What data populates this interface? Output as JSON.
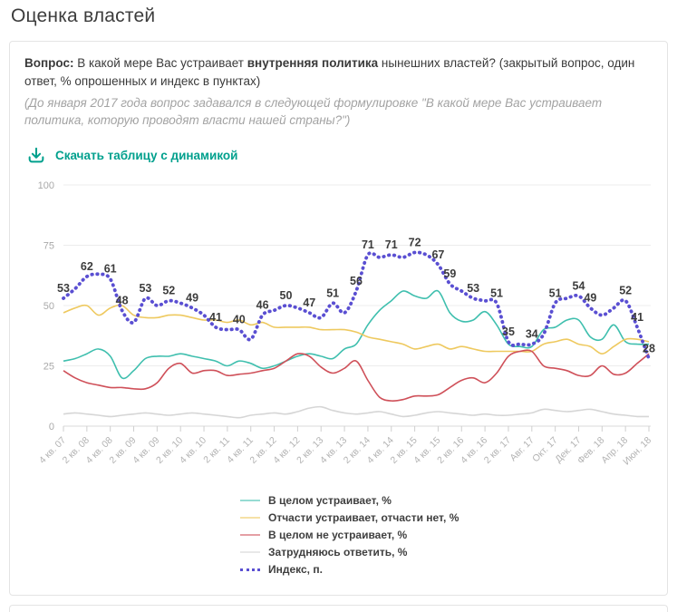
{
  "page_title": "Оценка властей",
  "question": {
    "label_bold": "Вопрос:",
    "part1": " В какой мере Вас устраивает ",
    "part_bold": "внутренняя политика",
    "part2": " нынешних властей? (закрытый вопрос, один ответ, % опрошенных и индекс в пунктах)",
    "note": "(До января 2017 года вопрос задавался в следующей формулировке \"В какой мере Вас устраивает политика, которую проводят власти нашей страны?\")"
  },
  "download": {
    "label": "Скачать таблицу с динамикой",
    "accent_color": "#00a08d"
  },
  "chart_data": {
    "type": "line",
    "ylim": [
      0,
      100
    ],
    "y_ticks": [
      100,
      75,
      50,
      25,
      0
    ],
    "grid_on": true,
    "legend_position": "bottom",
    "n_points": 51,
    "x_tick_labels": [
      "4 кв. 07",
      "2 кв. 08",
      "4 кв. 08",
      "2 кв. 09",
      "4 кв. 09",
      "2 кв. 10",
      "4 кв. 10",
      "2 кв. 11",
      "4 кв. 11",
      "2 кв. 12",
      "4 кв. 12",
      "2 кв. 13",
      "4 кв. 13",
      "2 кв. 14",
      "4 кв. 14",
      "2 кв. 15",
      "4 кв. 15",
      "2 кв. 16",
      "4 кв. 16",
      "2 кв. 17",
      "Авг. 17",
      "Окт. 17",
      "Дек. 17",
      "Фев. 18",
      "Апр. 18",
      "Июн. 18"
    ],
    "x_tick_point_indices": [
      0,
      2,
      4,
      6,
      8,
      10,
      12,
      14,
      16,
      18,
      20,
      22,
      24,
      26,
      28,
      30,
      32,
      34,
      36,
      38,
      40,
      42,
      44,
      46,
      48,
      50
    ],
    "series": [
      {
        "name": "В целом устраивает, %",
        "color": "#3fbfae",
        "style": "solid",
        "values": [
          27,
          28,
          30,
          32,
          29,
          20,
          23,
          28,
          29,
          29,
          30,
          29,
          28,
          27,
          25,
          27,
          26,
          24,
          25,
          27,
          29,
          30,
          29,
          28,
          32,
          34,
          42,
          48,
          52,
          56,
          54,
          53,
          56,
          47,
          43.5,
          44,
          47.5,
          42,
          34,
          33,
          33,
          40,
          41,
          44,
          44,
          37,
          36,
          42,
          35,
          34,
          34
        ]
      },
      {
        "name": "Отчасти устраивает, отчасти нет, %",
        "color": "#eec95f",
        "style": "solid",
        "values": [
          47,
          49,
          50,
          46,
          49,
          50,
          46,
          45,
          45,
          46,
          46,
          45,
          44,
          44,
          43,
          44,
          42,
          43,
          41,
          41,
          41,
          41,
          40,
          40,
          40,
          39,
          37,
          36,
          35,
          34,
          32,
          33,
          34,
          32,
          33,
          32,
          31,
          31,
          31,
          31,
          31,
          34,
          35,
          36,
          34,
          33,
          30,
          33,
          36,
          36,
          35
        ]
      },
      {
        "name": "В целом не устраивает, %",
        "color": "#cf5059",
        "style": "solid",
        "values": [
          23,
          20,
          18,
          17,
          16,
          16,
          15.5,
          15.5,
          18,
          24,
          26,
          22,
          23,
          23,
          21,
          21.5,
          22,
          23,
          24,
          27,
          30,
          29,
          24.5,
          22,
          24,
          27,
          19,
          12,
          10.5,
          11,
          12.5,
          12.5,
          13,
          16,
          19,
          20,
          18,
          22,
          29,
          31,
          31,
          25,
          24,
          23,
          21,
          21,
          25,
          21.5,
          22,
          26,
          30
        ]
      },
      {
        "name": "Затрудняюсь ответить, %",
        "color": "#d6d6d6",
        "style": "solid",
        "values": [
          5,
          5.5,
          5,
          4.5,
          4,
          4.5,
          5,
          5.5,
          5,
          4.5,
          5,
          5.5,
          5,
          4.5,
          4,
          3.5,
          4.5,
          5,
          5.5,
          5,
          6,
          7.5,
          8,
          6.5,
          5.5,
          5,
          5.5,
          6,
          5,
          4,
          4.5,
          5.5,
          6,
          5.5,
          5,
          4.5,
          5,
          4.5,
          4.5,
          5,
          5.5,
          7,
          6.5,
          6,
          6.5,
          7,
          6,
          5,
          4.5,
          4,
          4
        ]
      },
      {
        "name": "Индекс, п.",
        "color": "#5a4fd2",
        "style": "dotted",
        "values": [
          53,
          57,
          62,
          63,
          61,
          48,
          43,
          53,
          50,
          52,
          51,
          49,
          46,
          41,
          40,
          40,
          36,
          46,
          48,
          50,
          49,
          47,
          45,
          51,
          47,
          56,
          71,
          70,
          71,
          70,
          72,
          71,
          67,
          59,
          56,
          53,
          52,
          51,
          35,
          34,
          34,
          38,
          51,
          53,
          54,
          49,
          46,
          49,
          52,
          41,
          28
        ],
        "point_labels": {
          "0": 53,
          "2": 62,
          "4": 61,
          "5": 48,
          "7": 53,
          "9": 52,
          "11": 49,
          "13": 41,
          "15": 40,
          "17": 46,
          "19": 50,
          "21": 47,
          "23": 51,
          "25": 56,
          "26": 71,
          "28": 71,
          "30": 72,
          "32": 67,
          "33": 59,
          "35": 53,
          "37": 51,
          "38": 35,
          "40": 34,
          "42": 51,
          "44": 54,
          "45": 49,
          "48": 52,
          "49": 41,
          "50": 28
        }
      }
    ],
    "colors": {
      "grid": "#ececec",
      "axis_line": "#d9d9d9",
      "tick": "#cfcfcf",
      "axis_label": "#b3b3b3",
      "y_label": "#a9a9a9",
      "data_label": "#3c3c3c"
    }
  }
}
